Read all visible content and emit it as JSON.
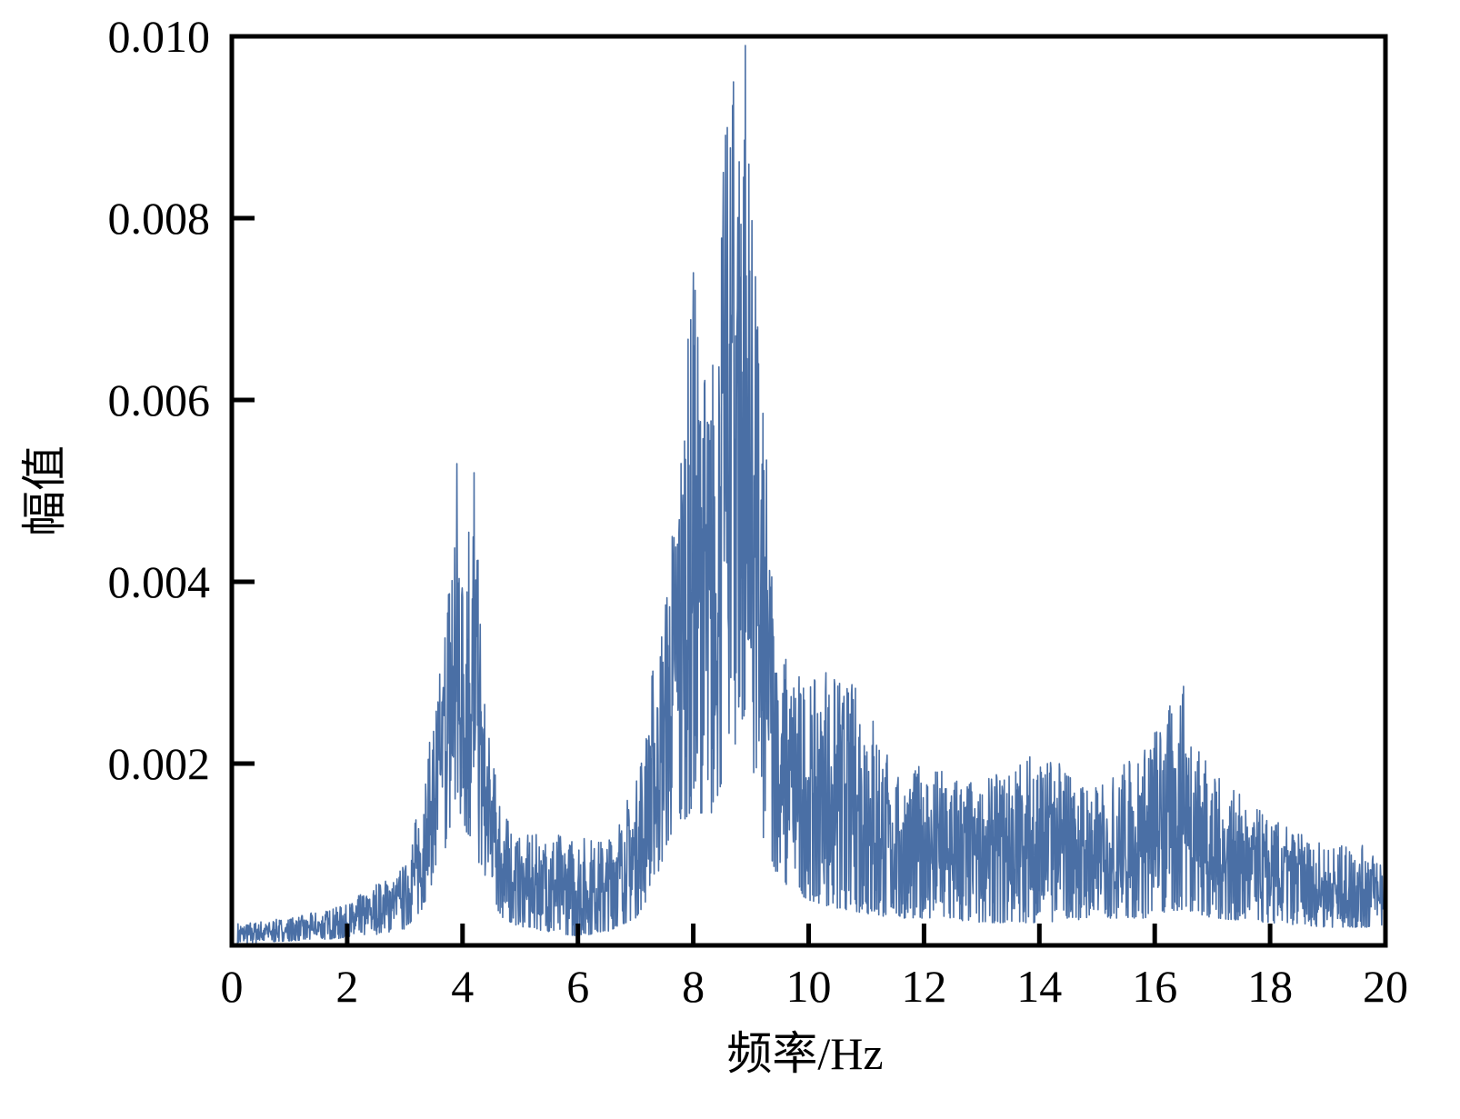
{
  "chart_data": {
    "type": "line",
    "title": "",
    "xlabel": "频率/Hz",
    "ylabel": "幅值",
    "xlim": [
      0,
      20
    ],
    "ylim": [
      0,
      0.01
    ],
    "grid": false,
    "x_ticks": [
      0,
      2,
      4,
      6,
      8,
      10,
      12,
      14,
      16,
      18,
      20
    ],
    "x_tick_labels": [
      "0",
      "2",
      "4",
      "6",
      "8",
      "10",
      "12",
      "14",
      "16",
      "18",
      "20"
    ],
    "y_ticks": [
      0.002,
      0.004,
      0.006,
      0.008,
      0.01
    ],
    "y_tick_labels": [
      "0.002",
      "0.004",
      "0.006",
      "0.008",
      "0.010"
    ],
    "colors": {
      "series": "#4a6fa5",
      "axes": "#000000"
    },
    "envelope": [
      {
        "x": 0.1,
        "low": 2e-05,
        "high": 0.00025
      },
      {
        "x": 1.0,
        "low": 5e-05,
        "high": 0.0003
      },
      {
        "x": 2.0,
        "low": 8e-05,
        "high": 0.00045
      },
      {
        "x": 2.5,
        "low": 0.00012,
        "high": 0.0007
      },
      {
        "x": 3.0,
        "low": 0.00018,
        "high": 0.0009
      },
      {
        "x": 3.3,
        "low": 0.0004,
        "high": 0.0017
      },
      {
        "x": 3.6,
        "low": 0.0009,
        "high": 0.003
      },
      {
        "x": 3.9,
        "low": 0.0014,
        "high": 0.0053
      },
      {
        "x": 4.0,
        "low": 0.0013,
        "high": 0.0048
      },
      {
        "x": 4.2,
        "low": 0.0011,
        "high": 0.0052
      },
      {
        "x": 4.4,
        "low": 0.0006,
        "high": 0.0025
      },
      {
        "x": 4.7,
        "low": 0.0003,
        "high": 0.0015
      },
      {
        "x": 5.0,
        "low": 0.0002,
        "high": 0.0012
      },
      {
        "x": 5.5,
        "low": 0.00015,
        "high": 0.00125
      },
      {
        "x": 6.0,
        "low": 0.0001,
        "high": 0.0012
      },
      {
        "x": 6.5,
        "low": 0.00015,
        "high": 0.0012
      },
      {
        "x": 7.0,
        "low": 0.0003,
        "high": 0.0018
      },
      {
        "x": 7.3,
        "low": 0.0006,
        "high": 0.0031
      },
      {
        "x": 7.6,
        "low": 0.0012,
        "high": 0.0044
      },
      {
        "x": 8.0,
        "low": 0.0015,
        "high": 0.0074
      },
      {
        "x": 8.3,
        "low": 0.0014,
        "high": 0.0062
      },
      {
        "x": 8.6,
        "low": 0.002,
        "high": 0.0095
      },
      {
        "x": 8.9,
        "low": 0.0025,
        "high": 0.0099
      },
      {
        "x": 9.2,
        "low": 0.0012,
        "high": 0.006
      },
      {
        "x": 9.5,
        "low": 0.0007,
        "high": 0.0033
      },
      {
        "x": 10.0,
        "low": 0.0005,
        "high": 0.0029
      },
      {
        "x": 10.5,
        "low": 0.0004,
        "high": 0.003
      },
      {
        "x": 11.0,
        "low": 0.00035,
        "high": 0.0028
      },
      {
        "x": 11.5,
        "low": 0.0003,
        "high": 0.0019
      },
      {
        "x": 12.0,
        "low": 0.0003,
        "high": 0.002
      },
      {
        "x": 13.0,
        "low": 0.00025,
        "high": 0.0018
      },
      {
        "x": 14.0,
        "low": 0.00025,
        "high": 0.0022
      },
      {
        "x": 15.0,
        "low": 0.0003,
        "high": 0.00175
      },
      {
        "x": 15.8,
        "low": 0.0003,
        "high": 0.00225
      },
      {
        "x": 16.5,
        "low": 0.0004,
        "high": 0.00285
      },
      {
        "x": 17.0,
        "low": 0.0003,
        "high": 0.0019
      },
      {
        "x": 18.0,
        "low": 0.00025,
        "high": 0.0014
      },
      {
        "x": 19.0,
        "low": 0.0002,
        "high": 0.0011
      },
      {
        "x": 20.0,
        "low": 0.0002,
        "high": 0.0011
      }
    ],
    "peaks": [
      {
        "x": 3.9,
        "y": 0.0053
      },
      {
        "x": 4.2,
        "y": 0.0052
      },
      {
        "x": 8.0,
        "y": 0.0074
      },
      {
        "x": 8.7,
        "y": 0.0095
      },
      {
        "x": 8.9,
        "y": 0.0099
      },
      {
        "x": 10.3,
        "y": 0.003
      },
      {
        "x": 16.5,
        "y": 0.00285
      }
    ]
  }
}
